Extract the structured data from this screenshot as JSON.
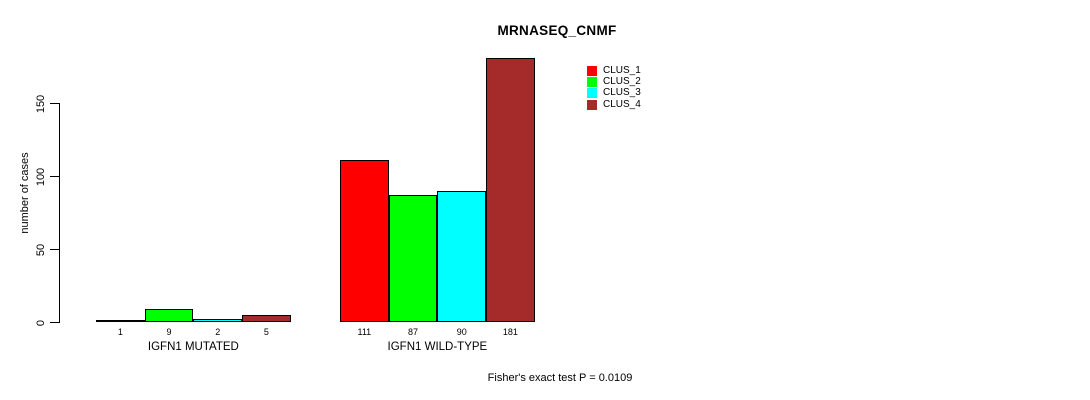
{
  "chart_data": {
    "type": "bar",
    "grouped": true,
    "title": "MRNASEQ_CNMF",
    "ylabel": "number of cases",
    "xlabel": "",
    "categories": [
      "IGFN1 MUTATED",
      "IGFN1 WILD-TYPE"
    ],
    "series": [
      {
        "name": "CLUS_1",
        "color": "#ff0000",
        "values": [
          1,
          111
        ]
      },
      {
        "name": "CLUS_2",
        "color": "#00ff00",
        "values": [
          9,
          87
        ]
      },
      {
        "name": "CLUS_3",
        "color": "#00ffff",
        "values": [
          2,
          90
        ]
      },
      {
        "name": "CLUS_4",
        "color": "#a52a2a",
        "values": [
          5,
          181
        ]
      }
    ],
    "yticks": [
      0,
      50,
      100,
      150
    ],
    "ylim": [
      0,
      185
    ],
    "grid": false,
    "legend_position": "top-right",
    "show_bar_value_labels": true,
    "annotation": "Fisher's exact test P = 0.0109"
  }
}
